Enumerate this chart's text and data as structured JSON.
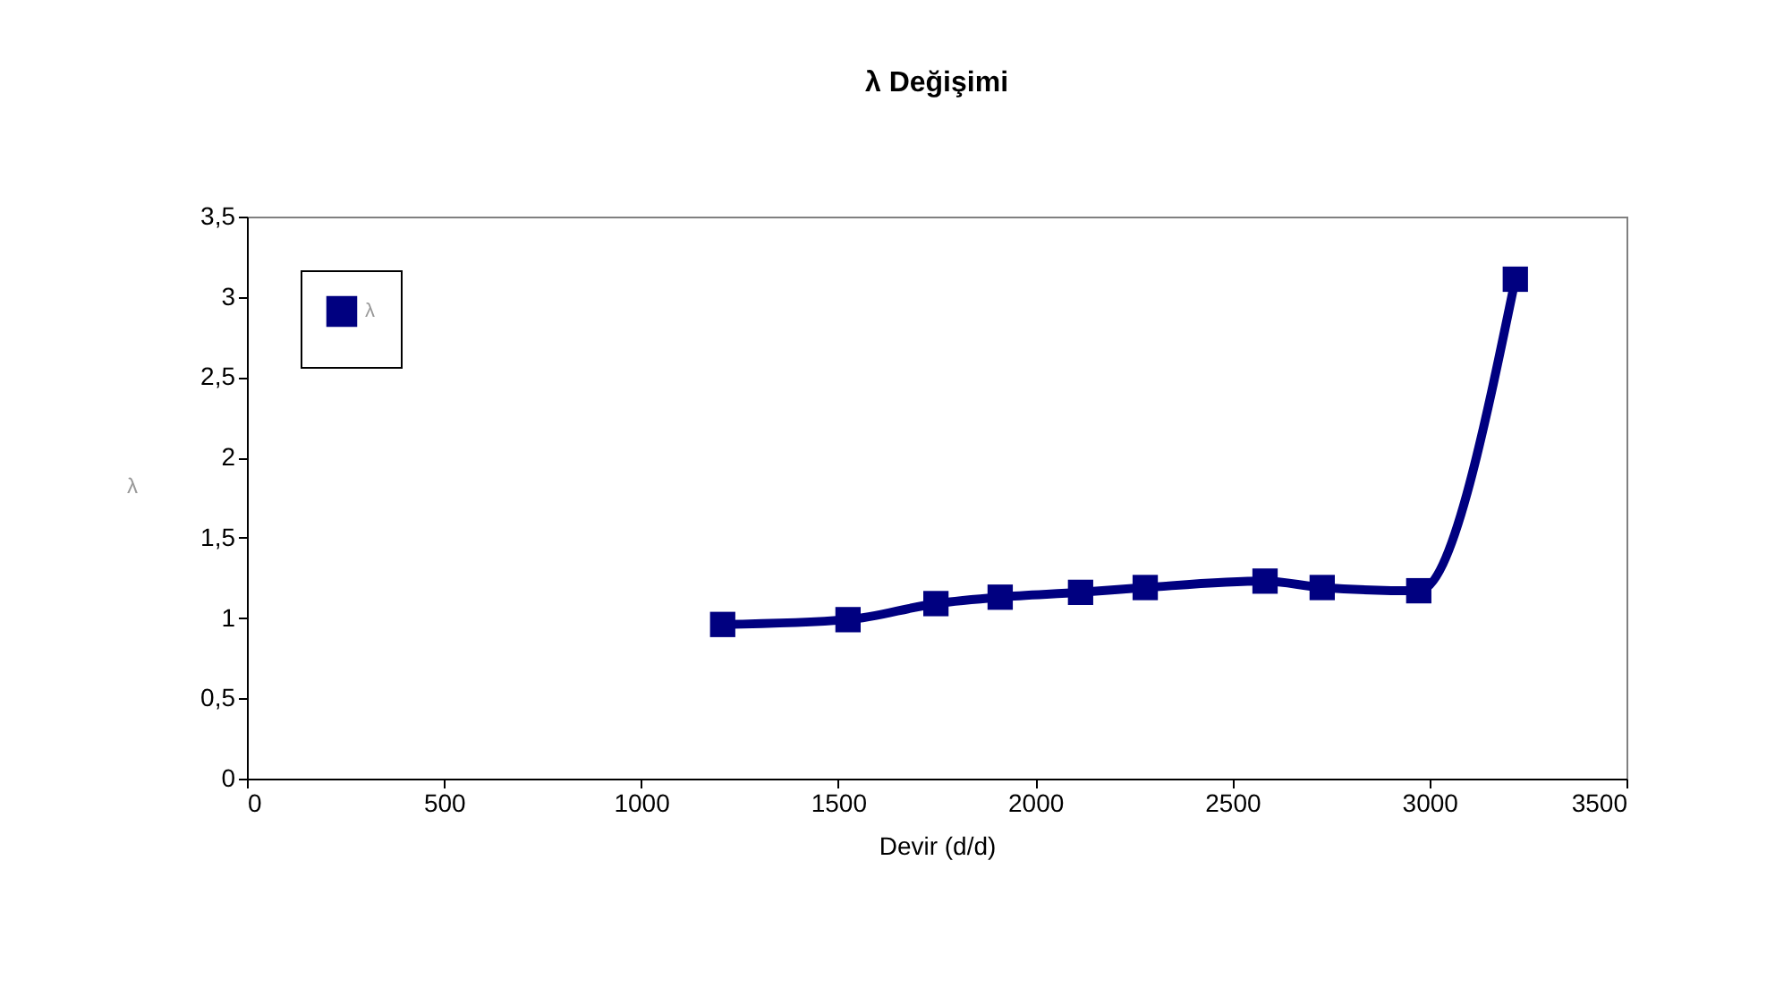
{
  "chart_data": {
    "type": "line",
    "title": "λ Değişimi",
    "xlabel": "Devir (d/d)",
    "ylabel": "λ",
    "x": [
      1207,
      1525,
      1748,
      1911,
      2115,
      2279,
      2583,
      2728,
      2973,
      3218
    ],
    "series": [
      {
        "name": "λ",
        "color": "#000080",
        "values": [
          0.96,
          0.99,
          1.09,
          1.13,
          1.16,
          1.19,
          1.23,
          1.19,
          1.17,
          3.11
        ]
      }
    ],
    "xlim": [
      0,
      3500
    ],
    "xticks": [
      0,
      500,
      1000,
      1500,
      2000,
      2500,
      3000,
      3500
    ],
    "ylim": [
      0,
      3.5
    ],
    "yticks": [
      {
        "value": 0,
        "label": "0"
      },
      {
        "value": 0.5,
        "label": "0,5"
      },
      {
        "value": 1,
        "label": "1"
      },
      {
        "value": 1.5,
        "label": "1,5"
      },
      {
        "value": 2,
        "label": "2"
      },
      {
        "value": 2.5,
        "label": "2,5"
      },
      {
        "value": 3,
        "label": "3"
      },
      {
        "value": 3.5,
        "label": "3,5"
      }
    ],
    "grid": false,
    "legend": "top left",
    "marker": "square",
    "line_style": "solid"
  }
}
